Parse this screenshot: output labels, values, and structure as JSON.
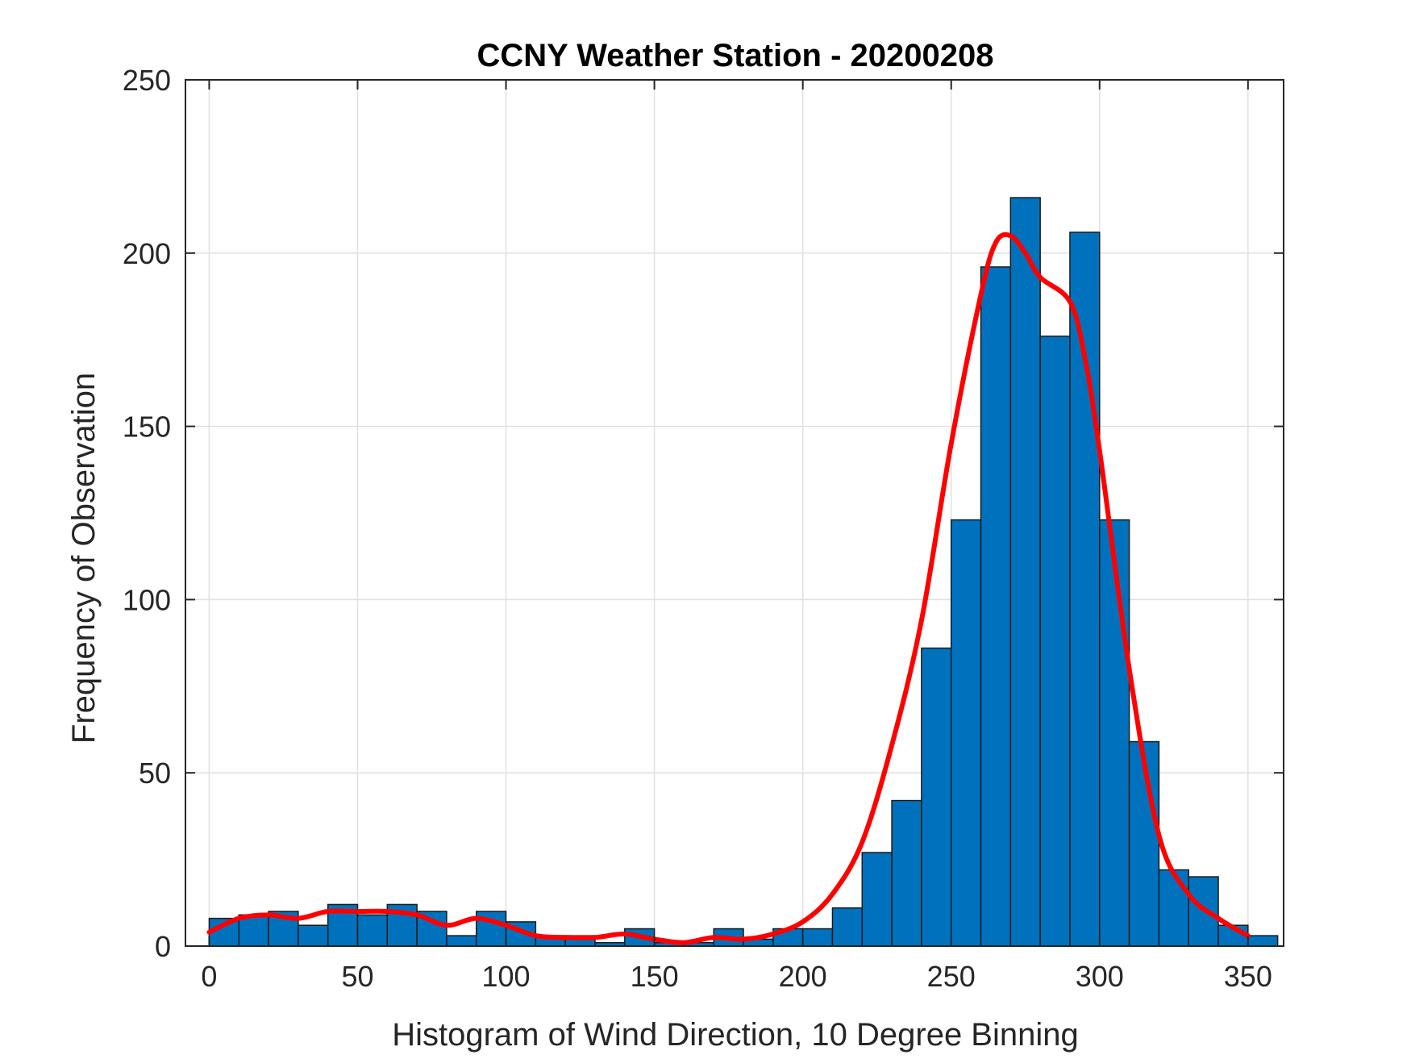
{
  "chart_data": {
    "type": "bar",
    "title": "CCNY Weather Station - 20200208",
    "xlabel": "Histogram of Wind Direction, 10 Degree Binning",
    "ylabel": "Frequency of Observation",
    "xlim": [
      -8,
      362
    ],
    "ylim": [
      0,
      250
    ],
    "xticks": [
      0,
      50,
      100,
      150,
      200,
      250,
      300,
      350
    ],
    "yticks": [
      0,
      50,
      100,
      150,
      200,
      250
    ],
    "grid": true,
    "bin_width": 10,
    "bins": [
      {
        "start": 0,
        "value": 8
      },
      {
        "start": 10,
        "value": 9
      },
      {
        "start": 20,
        "value": 10
      },
      {
        "start": 30,
        "value": 6
      },
      {
        "start": 40,
        "value": 12
      },
      {
        "start": 50,
        "value": 9
      },
      {
        "start": 60,
        "value": 12
      },
      {
        "start": 70,
        "value": 10
      },
      {
        "start": 80,
        "value": 3
      },
      {
        "start": 90,
        "value": 10
      },
      {
        "start": 100,
        "value": 7
      },
      {
        "start": 110,
        "value": 3
      },
      {
        "start": 120,
        "value": 3
      },
      {
        "start": 130,
        "value": 1
      },
      {
        "start": 140,
        "value": 5
      },
      {
        "start": 150,
        "value": 1
      },
      {
        "start": 160,
        "value": 1
      },
      {
        "start": 170,
        "value": 5
      },
      {
        "start": 180,
        "value": 2
      },
      {
        "start": 190,
        "value": 5
      },
      {
        "start": 200,
        "value": 5
      },
      {
        "start": 210,
        "value": 11
      },
      {
        "start": 220,
        "value": 27
      },
      {
        "start": 230,
        "value": 42
      },
      {
        "start": 240,
        "value": 86
      },
      {
        "start": 250,
        "value": 123
      },
      {
        "start": 260,
        "value": 196
      },
      {
        "start": 270,
        "value": 216
      },
      {
        "start": 280,
        "value": 176
      },
      {
        "start": 290,
        "value": 206
      },
      {
        "start": 300,
        "value": 123
      },
      {
        "start": 310,
        "value": 59
      },
      {
        "start": 320,
        "value": 22
      },
      {
        "start": 330,
        "value": 20
      },
      {
        "start": 340,
        "value": 6
      },
      {
        "start": 350,
        "value": 3
      }
    ],
    "curve": {
      "x": [
        0,
        10,
        20,
        30,
        40,
        50,
        60,
        70,
        80,
        90,
        100,
        110,
        120,
        130,
        140,
        150,
        160,
        170,
        180,
        190,
        200,
        210,
        220,
        230,
        240,
        250,
        260,
        265,
        270,
        275,
        280,
        290,
        295,
        300,
        310,
        320,
        330,
        340,
        350
      ],
      "y": [
        4,
        8,
        9,
        8,
        10,
        10,
        10,
        9,
        6,
        8,
        6,
        3,
        2.5,
        2.5,
        3.5,
        2,
        1,
        2.5,
        2,
        3.5,
        7,
        15,
        30,
        58,
        94,
        145,
        188,
        203,
        205,
        200,
        193,
        186,
        170,
        143,
        80,
        32,
        15,
        8,
        3
      ]
    },
    "colors": {
      "bar_fill": "#0072BD",
      "bar_edge": "#1a1a1a",
      "curve": "#FF0000",
      "grid": "#e0e0e0",
      "axis": "#262626"
    }
  }
}
